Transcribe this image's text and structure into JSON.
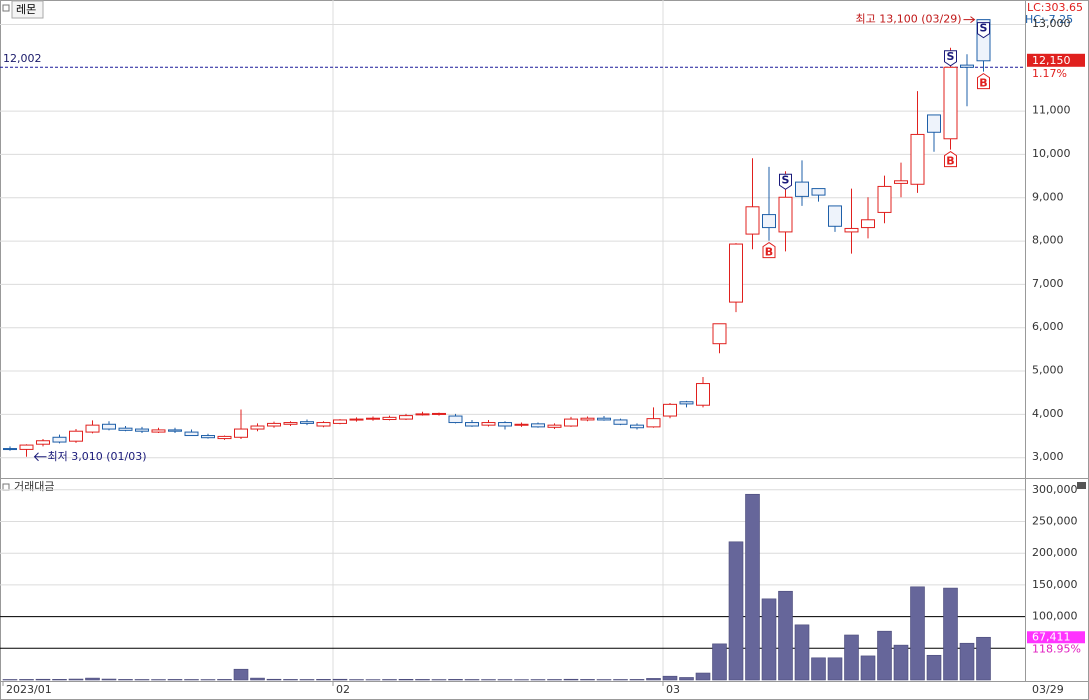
{
  "chart_data": [
    {
      "type": "candlestick",
      "title": "레몬",
      "lc_label": "LC:303.65",
      "hc_label": "HC:-7.25",
      "categories": [
        "2023/01",
        null,
        null,
        null,
        null,
        null,
        null,
        null,
        null,
        null,
        null,
        null,
        null,
        null,
        null,
        null,
        null,
        null,
        null,
        null,
        "02",
        null,
        null,
        null,
        null,
        null,
        null,
        null,
        null,
        null,
        null,
        null,
        null,
        null,
        null,
        null,
        null,
        null,
        null,
        null,
        "03",
        null,
        null,
        null,
        null,
        null,
        null,
        null,
        null,
        null,
        null,
        null,
        null,
        null,
        null,
        null,
        null,
        null,
        null,
        "03/29"
      ],
      "open": [
        3200,
        3180,
        3300,
        3460,
        3370,
        3580,
        3760,
        3670,
        3650,
        3580,
        3630,
        3580,
        3500,
        3430,
        3460,
        3650,
        3720,
        3760,
        3820,
        3720,
        3780,
        3860,
        3880,
        3870,
        3880,
        3980,
        4000,
        3950,
        3800,
        3740,
        3800,
        3740,
        3770,
        3690,
        3720,
        3860,
        3900,
        3860,
        3740,
        3700,
        3950,
        4280,
        4200,
        5620,
        6580,
        8150,
        8600,
        8200,
        9350,
        9200,
        8800,
        8200,
        8300,
        8650,
        9320,
        9300,
        10900,
        10350,
        12050,
        13100
      ],
      "high": [
        3250,
        3300,
        3420,
        3520,
        3650,
        3850,
        3830,
        3720,
        3700,
        3680,
        3680,
        3640,
        3540,
        3500,
        4100,
        3780,
        3820,
        3830,
        3870,
        3830,
        3880,
        3920,
        3940,
        3960,
        4000,
        4050,
        4030,
        4000,
        3860,
        3860,
        3830,
        3800,
        3800,
        3780,
        3930,
        3940,
        3950,
        3890,
        3780,
        4150,
        4250,
        4300,
        4850,
        6080,
        7940,
        9900,
        9700,
        9600,
        9850,
        9200,
        8800,
        9200,
        9000,
        9500,
        9800,
        11450,
        10900,
        12450,
        12300,
        13100
      ],
      "low": [
        3150,
        3010,
        3250,
        3320,
        3330,
        3550,
        3620,
        3600,
        3560,
        3560,
        3560,
        3490,
        3430,
        3400,
        3420,
        3600,
        3680,
        3720,
        3740,
        3690,
        3760,
        3820,
        3840,
        3850,
        3860,
        3960,
        3960,
        3780,
        3700,
        3710,
        3640,
        3700,
        3680,
        3650,
        3700,
        3830,
        3840,
        3740,
        3640,
        3680,
        3900,
        4150,
        4150,
        5400,
        6350,
        7800,
        8000,
        7750,
        8800,
        8900,
        8200,
        7700,
        8050,
        8400,
        9000,
        9100,
        10050,
        10100,
        11100,
        11900
      ],
      "close": [
        3180,
        3280,
        3380,
        3350,
        3600,
        3740,
        3650,
        3620,
        3600,
        3630,
        3600,
        3500,
        3450,
        3480,
        3650,
        3720,
        3780,
        3800,
        3780,
        3800,
        3860,
        3880,
        3900,
        3920,
        3960,
        4000,
        4010,
        3800,
        3720,
        3800,
        3720,
        3760,
        3700,
        3740,
        3880,
        3900,
        3860,
        3760,
        3680,
        3890,
        4220,
        4230,
        4700,
        6080,
        7920,
        8780,
        8300,
        9000,
        9020,
        9050,
        8330,
        8280,
        8480,
        9250,
        9380,
        10450,
        10500,
        12000,
        12000,
        12150
      ],
      "up_color": "#e0201e",
      "down_color": "#1e5fa8",
      "ylim": [
        2520,
        13530
      ],
      "yticks": [
        {
          "value": 3000,
          "label": "3,000"
        },
        {
          "value": 4000,
          "label": "4,000"
        },
        {
          "value": 5000,
          "label": "5,000"
        },
        {
          "value": 6000,
          "label": "6,000"
        },
        {
          "value": 7000,
          "label": "7,000"
        },
        {
          "value": 8000,
          "label": "8,000"
        },
        {
          "value": 9000,
          "label": "9,000"
        },
        {
          "value": 10000,
          "label": "10,000"
        },
        {
          "value": 11000,
          "label": "11,000"
        },
        {
          "value": 13000,
          "label": "13,000"
        }
      ],
      "grid": true,
      "ref_line": {
        "value": 12002,
        "label": "12,002"
      },
      "last_price": {
        "value": 12150,
        "label": "12,150"
      },
      "last_change": "1.17%",
      "high_label": "최고 13,100 (03/29)",
      "low_label": "최저 3,010 (01/03)",
      "signals": [
        {
          "x": 46,
          "label": "B"
        },
        {
          "x": 47,
          "label": "S"
        },
        {
          "x": 57,
          "label": "S"
        },
        {
          "x": 57,
          "label": "B"
        },
        {
          "x": 59,
          "label": "S"
        },
        {
          "x": 59,
          "label": "B"
        }
      ]
    },
    {
      "type": "bar",
      "title": "거래대금",
      "color": "#66669a",
      "values": [
        800,
        900,
        1200,
        1000,
        1500,
        3000,
        1500,
        900,
        800,
        700,
        900,
        800,
        700,
        900,
        17000,
        3000,
        1200,
        900,
        800,
        1000,
        1200,
        700,
        600,
        800,
        1100,
        900,
        700,
        1000,
        800,
        700,
        700,
        600,
        700,
        800,
        1200,
        900,
        700,
        800,
        900,
        2500,
        6000,
        4000,
        11000,
        57000,
        218000,
        293000,
        128000,
        140000,
        87000,
        35000,
        35000,
        71000,
        38000,
        77000,
        55000,
        147000,
        39000,
        145000,
        58000,
        67411
      ],
      "ylim": [
        0,
        315000
      ],
      "yticks": [
        {
          "value": 100000,
          "label": "100,000"
        },
        {
          "value": 150000,
          "label": "150,000"
        },
        {
          "value": 200000,
          "label": "200,000"
        },
        {
          "value": 250000,
          "label": "250,000"
        },
        {
          "value": 300000,
          "label": "300,000"
        }
      ],
      "ref_lines": [
        50000,
        100000
      ],
      "last_value": {
        "value": 67411,
        "label": "67,411"
      },
      "ratio_label": "118.95%"
    }
  ]
}
